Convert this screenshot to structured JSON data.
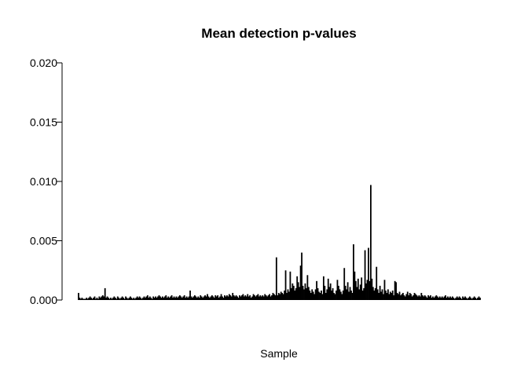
{
  "chart_data": {
    "type": "bar",
    "title": "Mean detection p-values",
    "xlabel": "Sample",
    "ylabel": "",
    "ylim": [
      0,
      0.02
    ],
    "yticks": [
      "0.000",
      "0.005",
      "0.010",
      "0.015",
      "0.020"
    ],
    "ytick_values": [
      0,
      0.005,
      0.01,
      0.015,
      0.02
    ],
    "grid": false,
    "legend": "none",
    "bar_color": "#000000",
    "values": [
      0.0006,
      0.0002,
      0.0001,
      0.0002,
      0.0001,
      0.0001,
      0.0001,
      0.0002,
      0.0001,
      0.0002,
      0.0003,
      0.0002,
      0.0001,
      0.0002,
      0.0003,
      0.0001,
      0.0002,
      0.0001,
      0.0003,
      0.0002,
      0.0003,
      0.0004,
      0.0003,
      0.001,
      0.0002,
      0.0003,
      0.0002,
      0.0001,
      0.0002,
      0.0001,
      0.0002,
      0.0003,
      0.0002,
      0.0001,
      0.0003,
      0.0002,
      0.0001,
      0.0002,
      0.0003,
      0.0002,
      0.0001,
      0.0003,
      0.0002,
      0.0001,
      0.0002,
      0.0003,
      0.0002,
      0.0001,
      0.0002,
      0.0001,
      0.0002,
      0.0003,
      0.0002,
      0.0003,
      0.0002,
      0.0001,
      0.0002,
      0.0003,
      0.0002,
      0.0003,
      0.0004,
      0.0002,
      0.0003,
      0.0002,
      0.0001,
      0.0003,
      0.0002,
      0.0003,
      0.0002,
      0.0003,
      0.0004,
      0.0003,
      0.0002,
      0.0003,
      0.0002,
      0.0003,
      0.0004,
      0.0002,
      0.0003,
      0.0002,
      0.0003,
      0.0004,
      0.0002,
      0.0003,
      0.0002,
      0.0003,
      0.0002,
      0.0003,
      0.0004,
      0.0003,
      0.0002,
      0.0003,
      0.0004,
      0.0002,
      0.0003,
      0.0002,
      0.0003,
      0.0008,
      0.0003,
      0.0002,
      0.0003,
      0.0004,
      0.0003,
      0.0002,
      0.0003,
      0.0002,
      0.0004,
      0.0003,
      0.0002,
      0.0003,
      0.0004,
      0.0003,
      0.0005,
      0.0003,
      0.0002,
      0.0003,
      0.0004,
      0.0003,
      0.0002,
      0.0004,
      0.0003,
      0.0004,
      0.0002,
      0.0003,
      0.0005,
      0.0003,
      0.0002,
      0.0004,
      0.0003,
      0.0004,
      0.0003,
      0.0005,
      0.0004,
      0.0003,
      0.0006,
      0.0004,
      0.0003,
      0.0004,
      0.0003,
      0.0002,
      0.0004,
      0.0003,
      0.0004,
      0.0005,
      0.0003,
      0.0004,
      0.0003,
      0.0005,
      0.0003,
      0.0004,
      0.0002,
      0.0003,
      0.0005,
      0.0004,
      0.0003,
      0.0004,
      0.0005,
      0.0003,
      0.0004,
      0.0003,
      0.0004,
      0.0003,
      0.0005,
      0.0004,
      0.0003,
      0.0004,
      0.0005,
      0.0003,
      0.0004,
      0.0006,
      0.0005,
      0.0004,
      0.0036,
      0.0004,
      0.0006,
      0.0005,
      0.0007,
      0.0006,
      0.0005,
      0.0008,
      0.0025,
      0.0006,
      0.0009,
      0.0007,
      0.0024,
      0.001,
      0.0014,
      0.0012,
      0.0008,
      0.001,
      0.002,
      0.0015,
      0.0011,
      0.0029,
      0.004,
      0.0012,
      0.0009,
      0.0014,
      0.001,
      0.0021,
      0.0011,
      0.0008,
      0.0006,
      0.0009,
      0.0007,
      0.0005,
      0.0009,
      0.0016,
      0.001,
      0.0007,
      0.0006,
      0.0008,
      0.0005,
      0.002,
      0.0012,
      0.0006,
      0.0009,
      0.0018,
      0.0011,
      0.0014,
      0.0008,
      0.001,
      0.0006,
      0.0005,
      0.0008,
      0.0017,
      0.0012,
      0.0009,
      0.0007,
      0.0005,
      0.0008,
      0.0027,
      0.0012,
      0.0009,
      0.0015,
      0.0007,
      0.0011,
      0.0008,
      0.0006,
      0.0047,
      0.0024,
      0.0016,
      0.0011,
      0.0018,
      0.0009,
      0.0013,
      0.0019,
      0.0008,
      0.001,
      0.0042,
      0.0014,
      0.0017,
      0.0044,
      0.0016,
      0.0097,
      0.0018,
      0.0011,
      0.0008,
      0.001,
      0.0028,
      0.0009,
      0.0006,
      0.0012,
      0.0007,
      0.0009,
      0.0005,
      0.0017,
      0.0008,
      0.0006,
      0.0009,
      0.0005,
      0.0007,
      0.0006,
      0.0008,
      0.0004,
      0.0016,
      0.0015,
      0.0006,
      0.0005,
      0.0007,
      0.0004,
      0.0005,
      0.0006,
      0.0004,
      0.0003,
      0.0005,
      0.0007,
      0.0004,
      0.0006,
      0.0005,
      0.0003,
      0.0004,
      0.0006,
      0.0005,
      0.0004,
      0.0003,
      0.0004,
      0.0003,
      0.0006,
      0.0004,
      0.0003,
      0.0004,
      0.0003,
      0.0002,
      0.0004,
      0.0003,
      0.0004,
      0.0002,
      0.0003,
      0.0002,
      0.0003,
      0.0004,
      0.0003,
      0.0002,
      0.0003,
      0.0002,
      0.0003,
      0.0002,
      0.0003,
      0.0004,
      0.0002,
      0.0003,
      0.0002,
      0.0003,
      0.0002,
      0.0003,
      0.0002,
      0.0001,
      0.0002,
      0.0003,
      0.0002,
      0.0003,
      0.0002,
      0.0001,
      0.0003,
      0.0002,
      0.0003,
      0.0002,
      0.0001,
      0.0002,
      0.0003,
      0.0002,
      0.0001,
      0.0002,
      0.0003,
      0.0002,
      0.0001,
      0.0002,
      0.0003,
      0.0002
    ]
  }
}
